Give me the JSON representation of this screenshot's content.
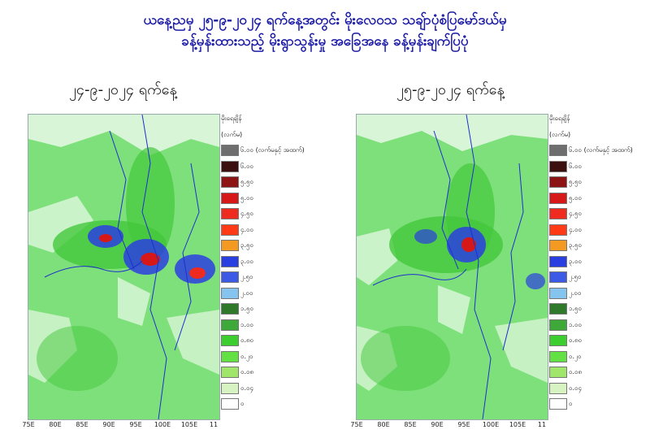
{
  "header": {
    "line1": "ယနေ့ညမှ ၂၅-၉-၂၀၂၄ ရက်နေ့အတွင်း မိုးလေဝသ သချ်ာပုံစံပြမော်ဒယ်မှ",
    "line2": "ခန့်မှန်းထားသည့် မိုးရွာသွန်းမှု အခြေအနေ ခန့်မှန်းချက်ပြပုံ"
  },
  "panels": [
    {
      "title": "၂၄-၉-၂၀၂၄ ရက်နေ့"
    },
    {
      "title": "၂၅-၉-၂၀၂၄ ရက်နေ့"
    }
  ],
  "longitude_labels": [
    "75E",
    "80E",
    "85E",
    "90E",
    "95E",
    "100E",
    "105E",
    "11"
  ],
  "legend": {
    "heading": "မိုးရေချိန်",
    "unit": "(လက်မ)",
    "items": [
      {
        "label": "၆.၀၀ (လက်မနှင့် အထက်)",
        "color": "#6e6e6e"
      },
      {
        "label": "၆.၀၀",
        "color": "#3d1010"
      },
      {
        "label": "၅.၅၀",
        "color": "#8c1414"
      },
      {
        "label": "၅.၀၀",
        "color": "#d61818"
      },
      {
        "label": "၄.၅၀",
        "color": "#ef2a1f"
      },
      {
        "label": "၄.၀၀",
        "color": "#ff3a14"
      },
      {
        "label": "၃.၅၀",
        "color": "#f49a22"
      },
      {
        "label": "၃.၀၀",
        "color": "#2a3fe0"
      },
      {
        "label": "၂.၅၀",
        "color": "#3c5ae6"
      },
      {
        "label": "၂.၀၀",
        "color": "#86c4f0"
      },
      {
        "label": "၁.၅၀",
        "color": "#2f7a2a"
      },
      {
        "label": "၁.၀၀",
        "color": "#3ea838"
      },
      {
        "label": "၀.၈၀",
        "color": "#3ccd2f"
      },
      {
        "label": "၀.၂၀",
        "color": "#63e043"
      },
      {
        "label": "၀.၀၈",
        "color": "#9fe66b"
      },
      {
        "label": "၀.၀၄",
        "color": "#d8f3c2"
      },
      {
        "label": "၀",
        "color": "#ffffff"
      }
    ]
  },
  "map_colors": {
    "rain_light": "#7ee07a",
    "rain_mid": "#44c83c",
    "heavy": "#2a3fe0",
    "intense": "#d61818",
    "border": "#1f2fd0"
  }
}
